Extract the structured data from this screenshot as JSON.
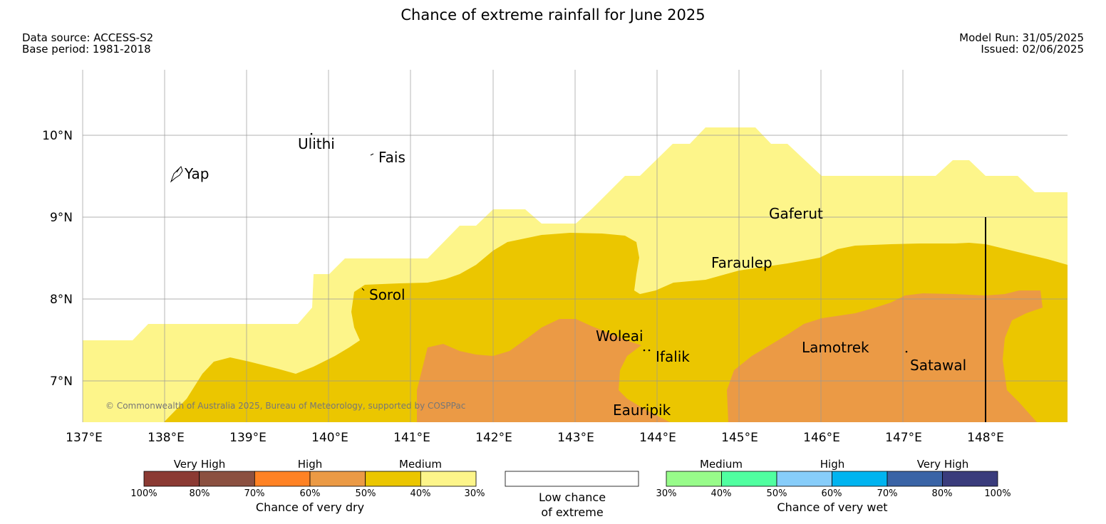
{
  "title": "Chance of extreme rainfall for June 2025",
  "meta": {
    "data_source": "Data source: ACCESS-S2",
    "base_period": "Base period: 1981-2018",
    "model_run": "Model Run: 31/05/2025",
    "issued": "Issued: 02/06/2025"
  },
  "map": {
    "lon_ticks": [
      "137°E",
      "138°E",
      "139°E",
      "140°E",
      "141°E",
      "142°E",
      "143°E",
      "144°E",
      "145°E",
      "146°E",
      "147°E",
      "148°E"
    ],
    "lat_ticks": [
      "10°N",
      "9°N",
      "8°N",
      "7°N"
    ],
    "copyright": "© Commonwealth of Australia 2025, Bureau of Meteorology, supported by COSPPac",
    "places": [
      {
        "name": "Yap"
      },
      {
        "name": "Ulithi"
      },
      {
        "name": "Fais"
      },
      {
        "name": "Sorol"
      },
      {
        "name": "Gaferut"
      },
      {
        "name": "Faraulep"
      },
      {
        "name": "Woleai"
      },
      {
        "name": "Ifalik"
      },
      {
        "name": "Lamotrek"
      },
      {
        "name": "Satawal"
      },
      {
        "name": "Eauripik"
      }
    ],
    "colors": {
      "dry_30_40": "#fdf58a",
      "dry_40_50": "#ebc600",
      "dry_50_60": "#eb9a45",
      "grid": "#999999",
      "land": "#000000"
    }
  },
  "legend": {
    "dry": {
      "headings": [
        "Very High",
        "High",
        "Medium"
      ],
      "percents": [
        "100%",
        "80%",
        "70%",
        "60%",
        "50%",
        "40%",
        "30%"
      ],
      "colors": [
        "#8b3a33",
        "#8b5040",
        "#ff8224",
        "#eb9a45",
        "#ebc600",
        "#fdf58a"
      ],
      "title": "Chance of very dry"
    },
    "low": {
      "line1": "Low chance",
      "line2": "of extreme"
    },
    "wet": {
      "headings": [
        "Medium",
        "High",
        "Very High"
      ],
      "percents": [
        "30%",
        "40%",
        "50%",
        "60%",
        "70%",
        "80%",
        "100%"
      ],
      "colors": [
        "#98fc8a",
        "#50ffa0",
        "#87cdfa",
        "#00b4f0",
        "#3a64a6",
        "#3a3c7c"
      ],
      "title": "Chance of very wet"
    }
  }
}
